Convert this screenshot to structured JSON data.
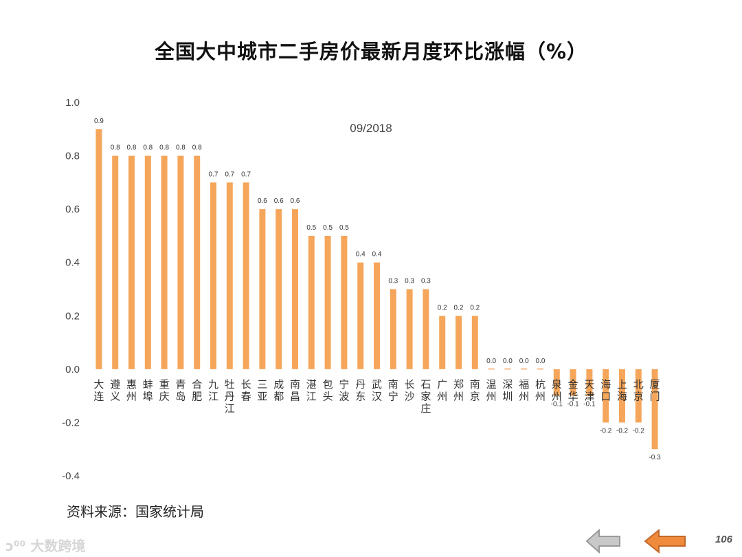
{
  "title": "全国大中城市二手房价最新月度环比涨幅（%）",
  "source": "资料来源：国家统计局",
  "page_number": "106",
  "watermark": "大数跨境",
  "colors": {
    "bar": "#f5a65b",
    "prev_arrow": "#c0c0c0",
    "next_arrow": "#f08a3c"
  },
  "icons": {
    "prev": "left-arrow-icon",
    "next": "left-arrow-icon"
  },
  "chart_data": {
    "type": "bar",
    "title": "全国大中城市二手房价最新月度环比涨幅（%）",
    "subtitle": "09/2018",
    "categories": [
      "大连",
      "遵义",
      "惠州",
      "蚌埠",
      "重庆",
      "青岛",
      "合肥",
      "九江",
      "牡丹江",
      "长春",
      "三亚",
      "成都",
      "南昌",
      "湛江",
      "包头",
      "宁波",
      "丹东",
      "武汉",
      "南宁",
      "长沙",
      "石家庄",
      "广州",
      "郑州",
      "南京",
      "温州",
      "深圳",
      "福州",
      "杭州",
      "泉州",
      "金华",
      "天津",
      "海口",
      "上海",
      "北京",
      "厦门"
    ],
    "values": [
      0.9,
      0.8,
      0.8,
      0.8,
      0.8,
      0.8,
      0.8,
      0.7,
      0.7,
      0.7,
      0.6,
      0.6,
      0.6,
      0.5,
      0.5,
      0.5,
      0.4,
      0.4,
      0.3,
      0.3,
      0.3,
      0.2,
      0.2,
      0.2,
      0.0,
      0.0,
      0.0,
      0.0,
      -0.1,
      -0.1,
      -0.1,
      -0.2,
      -0.2,
      -0.2,
      -0.3
    ],
    "value_labels": [
      "0.9",
      "0.8",
      "0.8",
      "0.8",
      "0.8",
      "0.8",
      "0.8",
      "0.7",
      "0.7",
      "0.7",
      "0.6",
      "0.6",
      "0.6",
      "0.5",
      "0.5",
      "0.5",
      "0.4",
      "0.4",
      "0.3",
      "0.3",
      "0.3",
      "0.2",
      "0.2",
      "0.2",
      "0.0",
      "0.0",
      "0.0",
      "0.0",
      "-0.1",
      "-0.1",
      "-0.1",
      "-0.2",
      "-0.2",
      "-0.2",
      "-0.3"
    ],
    "yticks": [
      "1.0",
      "0.8",
      "0.6",
      "0.4",
      "0.2",
      "0.0",
      "-0.2",
      "-0.4"
    ],
    "ylim": [
      -0.4,
      1.0
    ],
    "xlabel": "",
    "ylabel": "",
    "grid": false,
    "legend": "none"
  }
}
